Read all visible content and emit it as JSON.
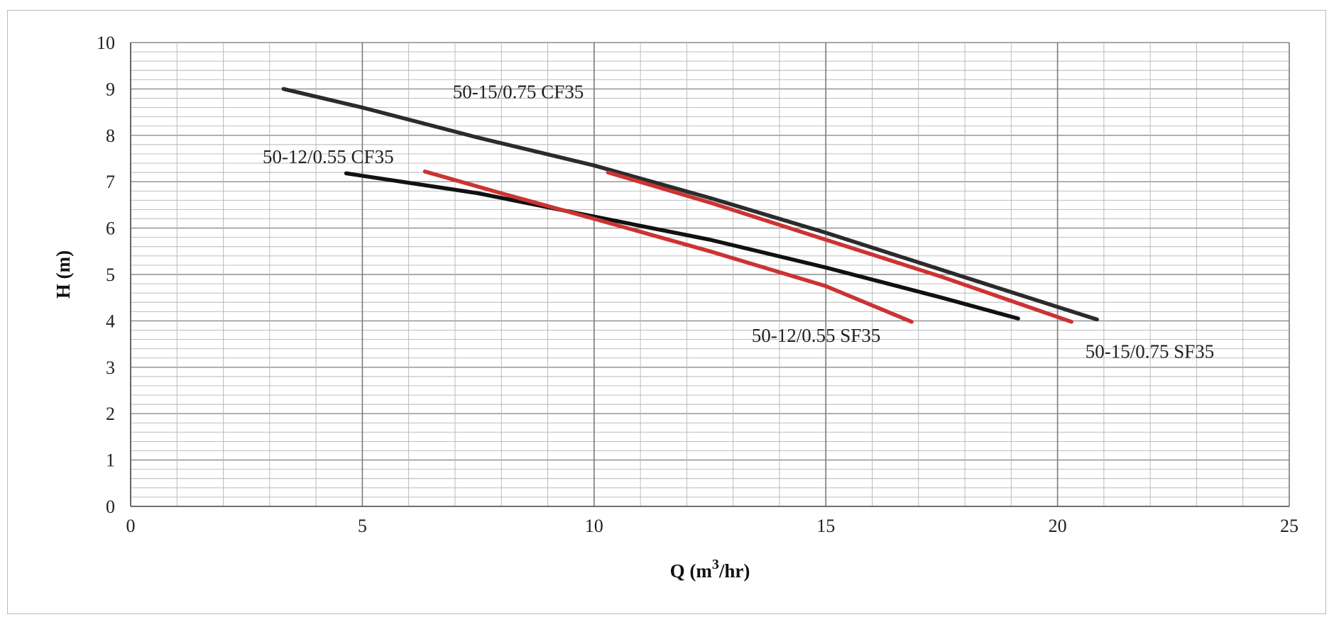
{
  "chart_data": {
    "type": "line",
    "xlabel": "Q (m³/hr)",
    "ylabel": "H (m)",
    "xlim": [
      0,
      25
    ],
    "ylim": [
      0,
      10
    ],
    "x_ticks": [
      "0",
      "5",
      "10",
      "15",
      "20",
      "25"
    ],
    "y_ticks": [
      "0",
      "1",
      "2",
      "3",
      "4",
      "5",
      "6",
      "7",
      "8",
      "9",
      "10"
    ],
    "grid": true,
    "legend": "none",
    "series": [
      {
        "name": "50-15/0.75  CF35",
        "color": "#2b2b2b",
        "points": [
          [
            3.3,
            9.0
          ],
          [
            5,
            8.6
          ],
          [
            7.5,
            7.95
          ],
          [
            10,
            7.35
          ],
          [
            12.5,
            6.65
          ],
          [
            15,
            5.9
          ],
          [
            17.5,
            5.1
          ],
          [
            20,
            4.3
          ],
          [
            20.85,
            4.03
          ]
        ]
      },
      {
        "name": "50-12/0.55 CF35",
        "color": "#111111",
        "points": [
          [
            4.65,
            7.18
          ],
          [
            7.5,
            6.75
          ],
          [
            10,
            6.25
          ],
          [
            12.5,
            5.75
          ],
          [
            15,
            5.15
          ],
          [
            17.5,
            4.5
          ],
          [
            19.15,
            4.05
          ]
        ]
      },
      {
        "name": "50-12/0.55 SF35",
        "color": "#cc3333",
        "points": [
          [
            6.35,
            7.22
          ],
          [
            8,
            6.75
          ],
          [
            10,
            6.2
          ],
          [
            12.5,
            5.5
          ],
          [
            15,
            4.75
          ],
          [
            16.85,
            3.98
          ]
        ]
      },
      {
        "name": "50-15/0.75 SF35",
        "color": "#cc3333",
        "points": [
          [
            10.3,
            7.2
          ],
          [
            12.5,
            6.55
          ],
          [
            15,
            5.75
          ],
          [
            17.5,
            4.95
          ],
          [
            20.3,
            3.98
          ]
        ]
      }
    ]
  }
}
